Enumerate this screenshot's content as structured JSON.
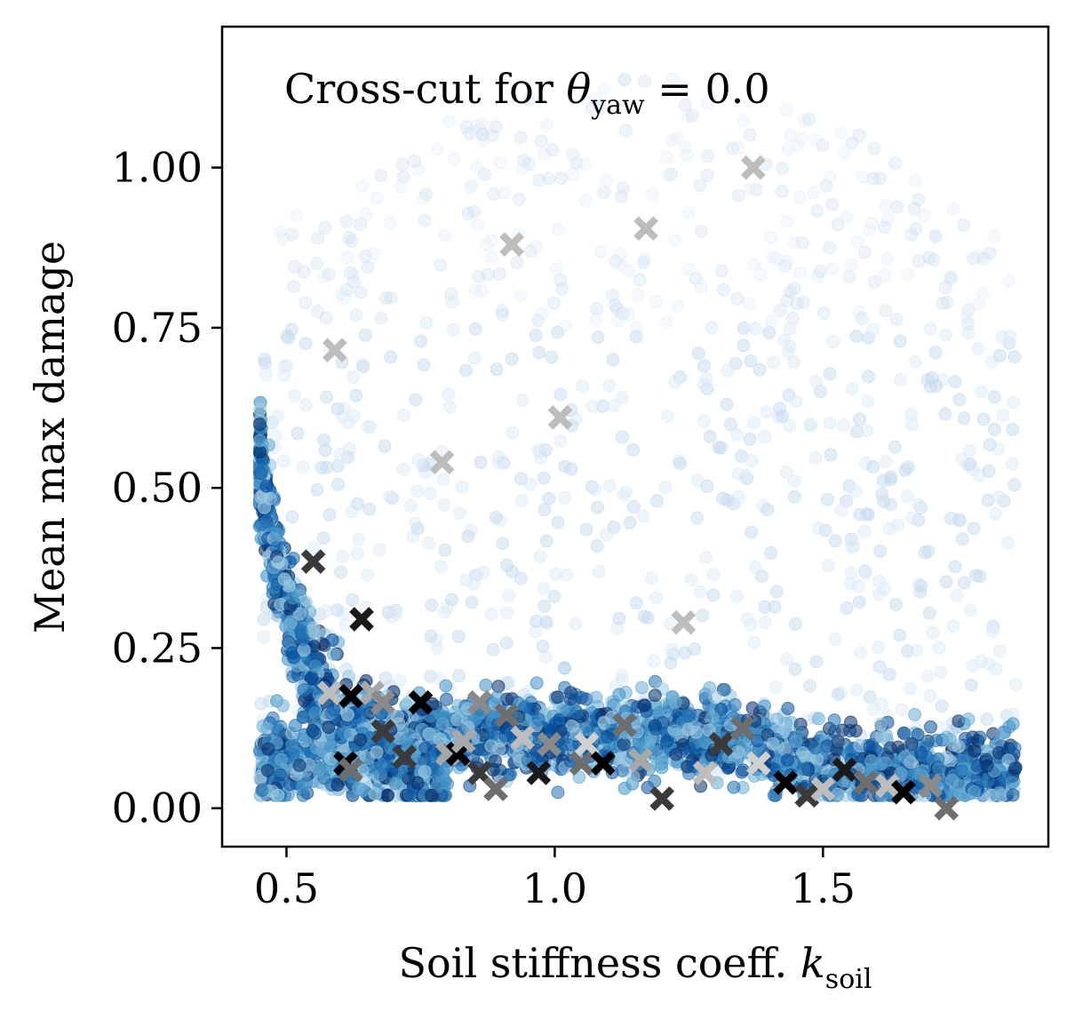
{
  "chart_data": {
    "type": "scatter",
    "annotation": {
      "prefix": "Cross-cut for ",
      "symbol": "θ",
      "subscript": "yaw",
      "suffix": " = 0.0"
    },
    "xlabel": {
      "main": "Soil stiffness coeff. ",
      "symbol": "k",
      "subscript": "soil"
    },
    "ylabel": "Mean max damage",
    "xlim": [
      0.38,
      1.92
    ],
    "ylim": [
      -0.06,
      1.22
    ],
    "xticks": [
      0.5,
      1.0,
      1.5
    ],
    "xtick_labels": [
      "0.5",
      "1.0",
      "1.5"
    ],
    "yticks": [
      0.0,
      0.25,
      0.5,
      0.75,
      1.0
    ],
    "ytick_labels": [
      "0.00",
      "0.25",
      "0.50",
      "0.75",
      "1.00"
    ],
    "grid": false,
    "colors": {
      "sample_cloud": [
        "#08306b",
        "#08519c",
        "#2171b5",
        "#4292c6",
        "#6baed6",
        "#9ecae1",
        "#c6dbef",
        "#deebf7"
      ],
      "markers": [
        "#000000",
        "#3a3a3a",
        "#6e6e6e",
        "#a8a8a8",
        "#bdbdbd"
      ]
    },
    "x_markers": [
      {
        "x": 0.55,
        "y": 0.385,
        "color": "#3a3a3a"
      },
      {
        "x": 0.59,
        "y": 0.715,
        "color": "#bdbdbd"
      },
      {
        "x": 0.64,
        "y": 0.295,
        "color": "#1a1a1a"
      },
      {
        "x": 0.58,
        "y": 0.18,
        "color": "#bdbdbd"
      },
      {
        "x": 0.62,
        "y": 0.175,
        "color": "#000000"
      },
      {
        "x": 0.66,
        "y": 0.18,
        "color": "#a8a8a8"
      },
      {
        "x": 0.68,
        "y": 0.165,
        "color": "#8a8a8a"
      },
      {
        "x": 0.61,
        "y": 0.07,
        "color": "#000000"
      },
      {
        "x": 0.62,
        "y": 0.06,
        "color": "#6e6e6e"
      },
      {
        "x": 0.68,
        "y": 0.12,
        "color": "#3a3a3a"
      },
      {
        "x": 0.72,
        "y": 0.08,
        "color": "#3a3a3a"
      },
      {
        "x": 0.75,
        "y": 0.165,
        "color": "#000000"
      },
      {
        "x": 0.79,
        "y": 0.54,
        "color": "#bdbdbd"
      },
      {
        "x": 0.8,
        "y": 0.085,
        "color": "#a8a8a8"
      },
      {
        "x": 0.82,
        "y": 0.085,
        "color": "#000000"
      },
      {
        "x": 0.83,
        "y": 0.105,
        "color": "#a8a8a8"
      },
      {
        "x": 0.86,
        "y": 0.165,
        "color": "#8a8a8a"
      },
      {
        "x": 0.86,
        "y": 0.055,
        "color": "#3a3a3a"
      },
      {
        "x": 0.89,
        "y": 0.03,
        "color": "#6e6e6e"
      },
      {
        "x": 0.91,
        "y": 0.145,
        "color": "#6e6e6e"
      },
      {
        "x": 0.92,
        "y": 0.88,
        "color": "#bdbdbd"
      },
      {
        "x": 0.94,
        "y": 0.11,
        "color": "#bdbdbd"
      },
      {
        "x": 0.97,
        "y": 0.055,
        "color": "#1a1a1a"
      },
      {
        "x": 0.99,
        "y": 0.1,
        "color": "#8a8a8a"
      },
      {
        "x": 1.01,
        "y": 0.61,
        "color": "#bdbdbd"
      },
      {
        "x": 1.05,
        "y": 0.07,
        "color": "#6e6e6e"
      },
      {
        "x": 1.06,
        "y": 0.1,
        "color": "#d0d0d0"
      },
      {
        "x": 1.09,
        "y": 0.07,
        "color": "#000000"
      },
      {
        "x": 1.13,
        "y": 0.13,
        "color": "#6e6e6e"
      },
      {
        "x": 1.17,
        "y": 0.905,
        "color": "#bdbdbd"
      },
      {
        "x": 1.16,
        "y": 0.075,
        "color": "#a8a8a8"
      },
      {
        "x": 1.2,
        "y": 0.015,
        "color": "#3a3a3a"
      },
      {
        "x": 1.24,
        "y": 0.29,
        "color": "#bdbdbd"
      },
      {
        "x": 1.28,
        "y": 0.055,
        "color": "#bdbdbd"
      },
      {
        "x": 1.31,
        "y": 0.1,
        "color": "#3a3a3a"
      },
      {
        "x": 1.35,
        "y": 0.125,
        "color": "#6e6e6e"
      },
      {
        "x": 1.37,
        "y": 1.0,
        "color": "#bdbdbd"
      },
      {
        "x": 1.38,
        "y": 0.07,
        "color": "#d0d0d0"
      },
      {
        "x": 1.43,
        "y": 0.04,
        "color": "#000000"
      },
      {
        "x": 1.47,
        "y": 0.02,
        "color": "#3a3a3a"
      },
      {
        "x": 1.5,
        "y": 0.03,
        "color": "#bdbdbd"
      },
      {
        "x": 1.54,
        "y": 0.06,
        "color": "#1a1a1a"
      },
      {
        "x": 1.58,
        "y": 0.04,
        "color": "#6e6e6e"
      },
      {
        "x": 1.62,
        "y": 0.035,
        "color": "#bdbdbd"
      },
      {
        "x": 1.65,
        "y": 0.025,
        "color": "#000000"
      },
      {
        "x": 1.7,
        "y": 0.035,
        "color": "#8a8a8a"
      },
      {
        "x": 1.73,
        "y": 0.0,
        "color": "#6e6e6e"
      }
    ]
  }
}
